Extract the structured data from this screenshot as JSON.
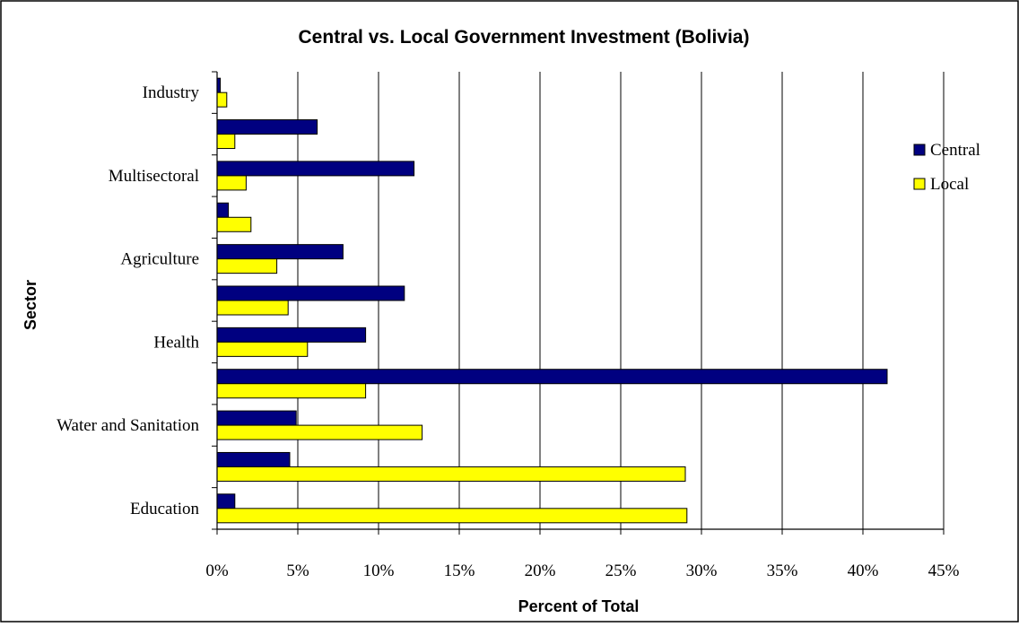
{
  "chart_data": {
    "type": "bar",
    "orientation": "horizontal",
    "title": "Central vs. Local Government Investment (Bolivia)",
    "xlabel": "Percent of Total",
    "ylabel": "Sector",
    "xlim": [
      0,
      45
    ],
    "x_ticks": [
      "0%",
      "5%",
      "10%",
      "15%",
      "20%",
      "25%",
      "30%",
      "35%",
      "40%",
      "45%"
    ],
    "x_tick_values": [
      0,
      5,
      10,
      15,
      20,
      25,
      30,
      35,
      40,
      45
    ],
    "grid": "vertical",
    "legend_position": "right",
    "categories": [
      "Education",
      "",
      "Water and Sanitation",
      "",
      "Health",
      "",
      "Agriculture",
      "",
      "Multisectoral",
      "",
      "Industry"
    ],
    "series": [
      {
        "name": "Central",
        "color": "#000080",
        "values": [
          1.1,
          4.5,
          4.9,
          41.5,
          9.2,
          11.6,
          7.8,
          0.7,
          12.2,
          6.2,
          0.2
        ]
      },
      {
        "name": "Local",
        "color": "#FFFF00",
        "values": [
          29.1,
          29.0,
          12.7,
          9.2,
          5.6,
          4.4,
          3.7,
          2.1,
          1.8,
          1.1,
          0.6
        ]
      }
    ]
  }
}
